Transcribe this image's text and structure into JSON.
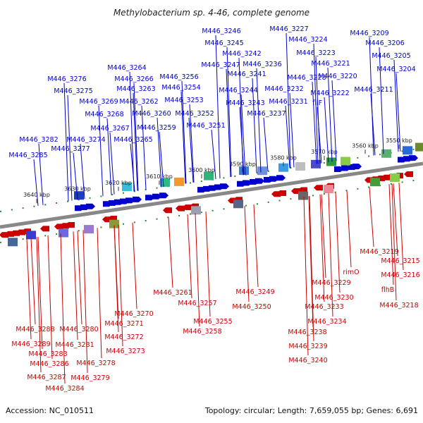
{
  "header": {
    "title": "Methylobacterium sp. 4-46, complete genome"
  },
  "footer": {
    "accession": "Accession: NC_010511",
    "summary": "Topology: circular; Length: 7,659,055 bp; Genes: 6,691"
  },
  "colors": {
    "forward": "#0000cc",
    "reverse": "#cc0000",
    "backbone": "#888888",
    "tick": "#2a8a2a"
  },
  "ticks": [
    "3550 kbp",
    "3560 kbp",
    "3570 kbp",
    "3580 kbp",
    "3590 kbp",
    "3600 kbp",
    "3610 kbp",
    "3620 kbp",
    "3630 kbp",
    "3640 kbp"
  ],
  "forward_genes": [
    "M446_3246",
    "M446_3227",
    "M446_3209",
    "M446_3245",
    "M446_3224",
    "M446_3206",
    "M446_3242",
    "M446_3223",
    "M446_3205",
    "M446_3247",
    "M446_3236",
    "M446_3221",
    "M446_3204",
    "M446_3264",
    "M446_3241",
    "M446_3220",
    "M446_3276",
    "M446_3266",
    "M446_3256",
    "M446_3228",
    "M446_3275",
    "M446_3263",
    "M446_3254",
    "M446_3244",
    "M446_3232",
    "M446_3222",
    "M446_3211",
    "M446_3269",
    "M446_3262",
    "M446_3253",
    "M446_3243",
    "M446_3231",
    "fliF",
    "M446_3268",
    "M446_3260",
    "M446_3252",
    "M446_3237",
    "M446_3267",
    "M446_3259",
    "M446_3251",
    "M446_3274",
    "M446_3265",
    "M446_3282",
    "M446_3277",
    "M446_3285"
  ],
  "reverse_genes": [
    "M446_3219",
    "M446_3215",
    "rimO",
    "M446_3216",
    "flhB",
    "M446_3229",
    "M446_3218",
    "M446_3261",
    "M446_3249",
    "M446_3230",
    "M446_3257",
    "M446_3250",
    "M446_3233",
    "M446_3270",
    "M446_3234",
    "M446_3271",
    "M446_3255",
    "M446_3288",
    "M446_3280",
    "M446_3238",
    "M446_3272",
    "M446_3258",
    "M446_3289",
    "M446_3281",
    "M446_3239",
    "M446_3283",
    "M446_3273",
    "M446_3240",
    "M446_3286",
    "M446_3278",
    "M446_3287",
    "M446_3279",
    "M446_3284"
  ]
}
